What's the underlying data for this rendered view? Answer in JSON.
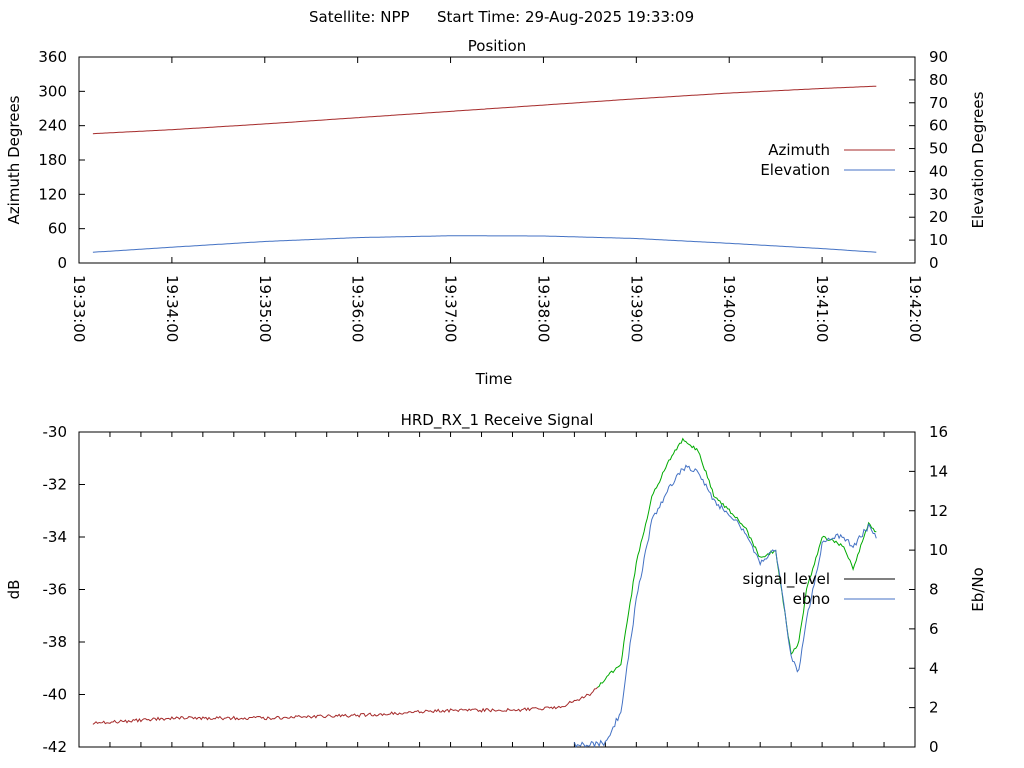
{
  "header": {
    "satellite_label": "Satellite: NPP",
    "start_time_label": "Start Time: 29-Aug-2025 19:33:09"
  },
  "chart_data": [
    {
      "type": "line",
      "title": "Position",
      "xlabel": "Time",
      "ylabel": "Azimuth Degrees",
      "y2label": "Elevation Degrees",
      "x_ticks": [
        "19:33:00",
        "19:34:00",
        "19:35:00",
        "19:36:00",
        "19:37:00",
        "19:38:00",
        "19:39:00",
        "19:40:00",
        "19:41:00",
        "19:42:00"
      ],
      "xlim": [
        "19:33:00",
        "19:42:00"
      ],
      "ylim": [
        0,
        360
      ],
      "y_ticks": [
        0,
        60,
        120,
        180,
        240,
        300,
        360
      ],
      "y2lim": [
        0,
        90
      ],
      "y2_ticks": [
        0,
        10,
        20,
        30,
        40,
        50,
        60,
        70,
        80,
        90
      ],
      "legend_position": "right",
      "grid": false,
      "series": [
        {
          "name": "Azimuth",
          "axis": "y",
          "color": "#a52a2a",
          "x": [
            "19:33:09",
            "19:34:00",
            "19:35:00",
            "19:36:00",
            "19:37:00",
            "19:38:00",
            "19:39:00",
            "19:40:00",
            "19:41:00",
            "19:41:35"
          ],
          "values": [
            226,
            233,
            243,
            254,
            265,
            276,
            287,
            297,
            305,
            309
          ]
        },
        {
          "name": "Elevation",
          "axis": "y2",
          "color": "#4472c4",
          "x": [
            "19:33:09",
            "19:34:00",
            "19:35:00",
            "19:36:00",
            "19:37:00",
            "19:38:00",
            "19:39:00",
            "19:40:00",
            "19:41:00",
            "19:41:35"
          ],
          "values": [
            4.7,
            6.9,
            9.4,
            11.1,
            11.9,
            11.8,
            10.7,
            8.6,
            6.3,
            4.7
          ]
        }
      ]
    },
    {
      "type": "line",
      "title": "HRD_RX_1 Receive Signal",
      "xlabel": "",
      "ylabel": "dB",
      "y2label": "Eb/No",
      "xlim": [
        "19:33:00",
        "19:42:00"
      ],
      "ylim": [
        -42,
        -30
      ],
      "y_ticks": [
        -42,
        -40,
        -38,
        -36,
        -34,
        -32,
        -30
      ],
      "y2lim": [
        0,
        16
      ],
      "y2_ticks": [
        0,
        2,
        4,
        6,
        8,
        10,
        12,
        14,
        16
      ],
      "legend_position": "right",
      "grid": false,
      "series": [
        {
          "name": "signal_level",
          "axis": "y",
          "colors": [
            "#a52a2a",
            "#00aa00"
          ],
          "x": [
            "19:33:09",
            "19:34:00",
            "19:35:00",
            "19:36:00",
            "19:37:00",
            "19:37:40",
            "19:38:10",
            "19:38:30",
            "19:38:50",
            "19:39:00",
            "19:39:10",
            "19:39:20",
            "19:39:30",
            "19:39:40",
            "19:39:50",
            "19:40:00",
            "19:40:10",
            "19:40:20",
            "19:40:30",
            "19:40:40",
            "19:40:45",
            "19:40:50",
            "19:41:00",
            "19:41:10",
            "19:41:15",
            "19:41:20",
            "19:41:30",
            "19:41:35"
          ],
          "values": [
            -41.1,
            -40.9,
            -40.9,
            -40.8,
            -40.6,
            -40.6,
            -40.5,
            -40.0,
            -38.8,
            -35.0,
            -32.5,
            -31.2,
            -30.3,
            -30.7,
            -32.4,
            -33.0,
            -33.6,
            -34.8,
            -34.5,
            -38.5,
            -38.0,
            -36.0,
            -34.0,
            -34.2,
            -34.5,
            -35.2,
            -33.5,
            -33.8
          ]
        },
        {
          "name": "ebno",
          "axis": "y2",
          "color": "#4472c4",
          "x": [
            "19:38:20",
            "19:38:40",
            "19:38:50",
            "19:39:00",
            "19:39:10",
            "19:39:20",
            "19:39:30",
            "19:39:40",
            "19:39:50",
            "19:40:00",
            "19:40:10",
            "19:40:20",
            "19:40:30",
            "19:40:40",
            "19:40:45",
            "19:40:50",
            "19:41:00",
            "19:41:10",
            "19:41:20",
            "19:41:30",
            "19:41:35"
          ],
          "values": [
            0.1,
            0.2,
            1.8,
            7.5,
            11.5,
            13.0,
            14.2,
            14.0,
            12.5,
            11.8,
            11.0,
            9.3,
            10.1,
            4.6,
            3.8,
            6.5,
            10.3,
            10.8,
            10.2,
            11.2,
            10.6
          ]
        }
      ]
    }
  ]
}
